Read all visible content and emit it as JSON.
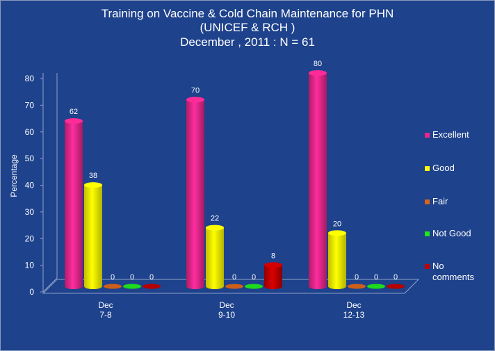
{
  "chart_data": {
    "type": "bar",
    "title_lines": [
      "Training on Vaccine & Cold Chain Maintenance for PHN",
      "(UNICEF & RCH )",
      "December , 2011 : N = 61"
    ],
    "ylabel": "Percentage",
    "ylim": [
      0,
      80
    ],
    "yticks": [
      "0",
      "10",
      "20",
      "30",
      "40",
      "50",
      "60",
      "70",
      "80"
    ],
    "categories": [
      [
        "Dec",
        "7-8"
      ],
      [
        "Dec",
        "9-10"
      ],
      [
        "Dec",
        "12-13"
      ]
    ],
    "series": [
      {
        "name": "Excellent",
        "color": "#e8278a",
        "values": [
          62,
          70,
          80
        ]
      },
      {
        "name": "Good",
        "color": "#ffff00",
        "values": [
          38,
          22,
          20
        ]
      },
      {
        "name": "Fair",
        "color": "#d8641c",
        "values": [
          0,
          0,
          0
        ]
      },
      {
        "name": "Not Good",
        "color": "#1ee61e",
        "values": [
          0,
          0,
          0
        ]
      },
      {
        "name": "No comments",
        "color": "#c00000",
        "values": [
          0,
          8,
          0
        ]
      }
    ],
    "legend_position": "right",
    "grid": false
  }
}
